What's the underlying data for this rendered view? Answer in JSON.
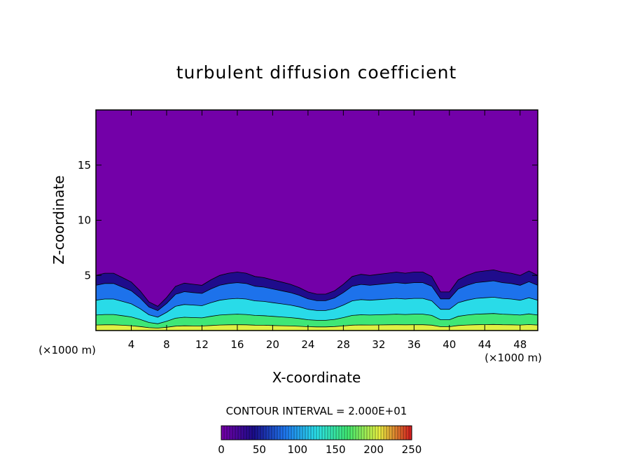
{
  "chart_data": {
    "type": "heatmap",
    "title": "turbulent diffusion coefficient",
    "xlabel": "X-coordinate",
    "ylabel": "Z-coordinate",
    "x_unit": "(×1000 m)",
    "xlim": [
      0,
      50
    ],
    "ylim": [
      0,
      20
    ],
    "x_ticks": [
      4,
      8,
      12,
      16,
      20,
      24,
      28,
      32,
      36,
      40,
      44,
      48
    ],
    "y_ticks": [
      5,
      10,
      15
    ],
    "boundary_layer_top": {
      "x": [
        0,
        1,
        2,
        3,
        4,
        5,
        6,
        7,
        8,
        9,
        10,
        11,
        12,
        13,
        14,
        15,
        16,
        17,
        18,
        19,
        20,
        21,
        22,
        23,
        24,
        25,
        26,
        27,
        28,
        29,
        30,
        31,
        32,
        33,
        34,
        35,
        36,
        37,
        38,
        39,
        40,
        41,
        42,
        43,
        44,
        45,
        46,
        47,
        48,
        49,
        50
      ],
      "z": [
        5.0,
        5.2,
        5.2,
        4.8,
        4.4,
        3.6,
        2.6,
        2.2,
        3.0,
        4.0,
        4.3,
        4.2,
        4.1,
        4.6,
        5.0,
        5.2,
        5.3,
        5.2,
        4.9,
        4.8,
        4.6,
        4.4,
        4.2,
        3.9,
        3.5,
        3.3,
        3.3,
        3.6,
        4.2,
        4.9,
        5.1,
        5.0,
        5.1,
        5.2,
        5.3,
        5.2,
        5.3,
        5.3,
        4.9,
        3.5,
        3.5,
        4.6,
        5.0,
        5.3,
        5.4,
        5.5,
        5.3,
        5.2,
        5.0,
        5.4,
        5.0
      ]
    },
    "colorbar": {
      "label": "CONTOUR INTERVAL = 2.000E+01",
      "ticks": [
        0,
        50,
        100,
        150,
        200,
        250
      ],
      "range": [
        0,
        250
      ]
    },
    "colors": {
      "background_field": "#7300a8",
      "low": "#1a0d8a",
      "mid_low": "#1e78f0",
      "mid": "#2ae0e8",
      "mid_high": "#40e870",
      "high": "#e8f040",
      "max": "#d42020"
    }
  }
}
